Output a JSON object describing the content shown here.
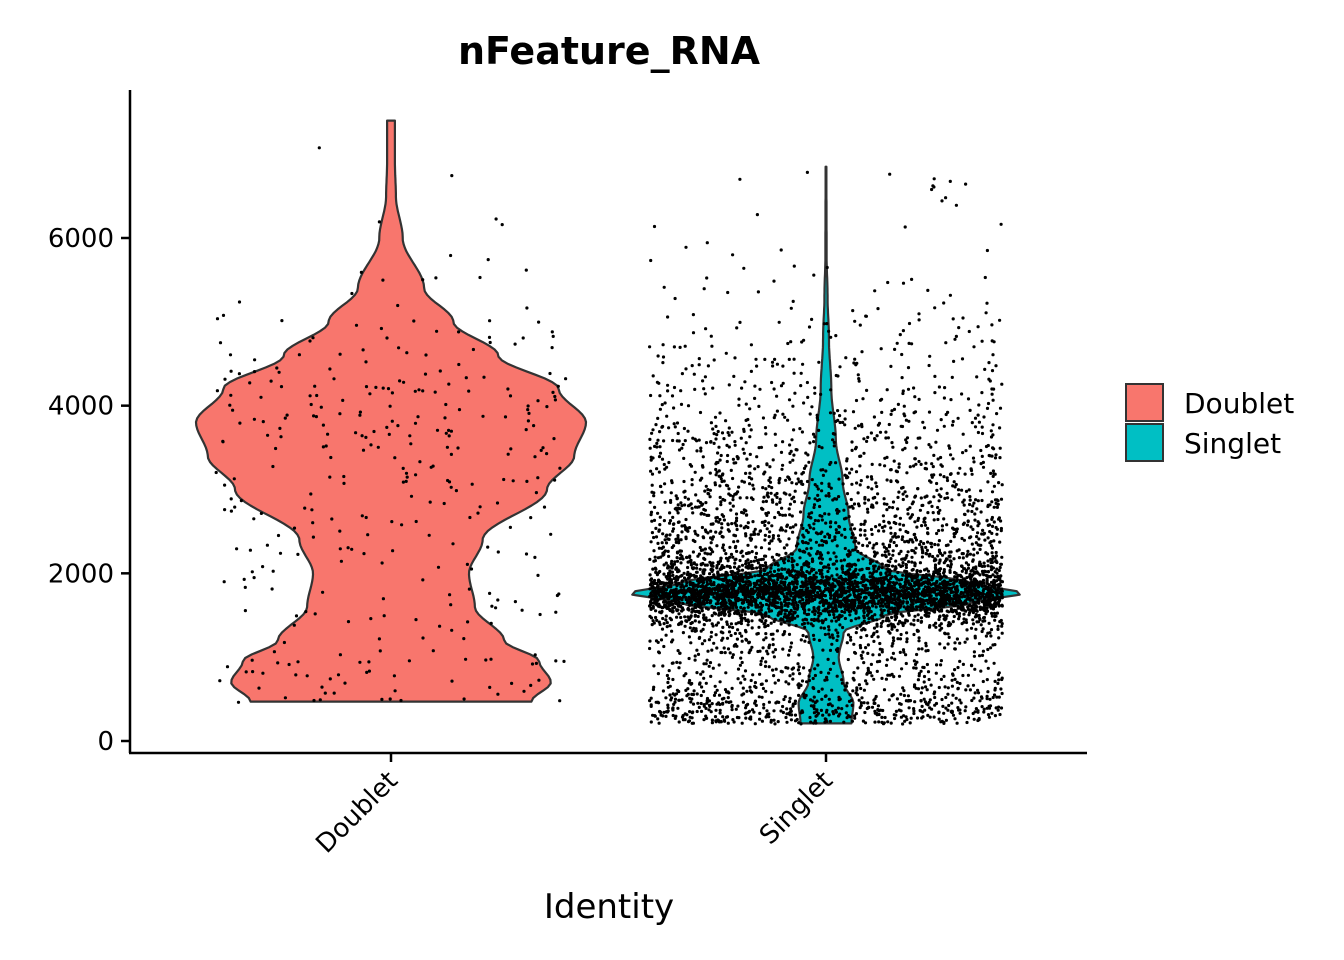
{
  "chart_data": {
    "type": "violin",
    "title": "nFeature_RNA",
    "xlabel": "Identity",
    "ylabel": "",
    "categories": [
      "Doublet",
      "Singlet"
    ],
    "colors": {
      "Doublet": "#F8766D",
      "Singlet": "#00BFC4"
    },
    "ylim": [
      -200,
      7800
    ],
    "yticks": [
      0,
      2000,
      4000,
      6000
    ],
    "ytick_labels": [
      "0",
      "2000",
      "4000",
      "6000"
    ],
    "legend": {
      "position": "right",
      "entries": [
        {
          "label": "Doublet",
          "color": "#F8766D"
        },
        {
          "label": "Singlet",
          "color": "#00BFC4"
        }
      ]
    },
    "grid": false,
    "series": [
      {
        "name": "Doublet",
        "min": 470,
        "max": 7400,
        "approx_points": 340,
        "density_profile": [
          [
            470,
            0.72
          ],
          [
            700,
            0.82
          ],
          [
            950,
            0.76
          ],
          [
            1200,
            0.58
          ],
          [
            1600,
            0.43
          ],
          [
            2000,
            0.4
          ],
          [
            2400,
            0.47
          ],
          [
            3000,
            0.8
          ],
          [
            3400,
            0.94
          ],
          [
            3800,
            1.0
          ],
          [
            4200,
            0.86
          ],
          [
            4600,
            0.55
          ],
          [
            5000,
            0.32
          ],
          [
            5400,
            0.17
          ],
          [
            6000,
            0.06
          ],
          [
            6500,
            0.025
          ],
          [
            6900,
            0.02
          ],
          [
            7400,
            0.02
          ]
        ]
      },
      {
        "name": "Singlet",
        "min": 210,
        "max": 6850,
        "approx_points": 6000,
        "density_profile": [
          [
            210,
            0.13
          ],
          [
            450,
            0.14
          ],
          [
            700,
            0.09
          ],
          [
            1000,
            0.065
          ],
          [
            1300,
            0.09
          ],
          [
            1500,
            0.3
          ],
          [
            1650,
            0.75
          ],
          [
            1760,
            1.0
          ],
          [
            1900,
            0.72
          ],
          [
            2050,
            0.3
          ],
          [
            2300,
            0.15
          ],
          [
            2700,
            0.115
          ],
          [
            3100,
            0.085
          ],
          [
            3600,
            0.05
          ],
          [
            4200,
            0.027
          ],
          [
            4800,
            0.015
          ],
          [
            5300,
            0.008
          ],
          [
            5800,
            0.003
          ],
          [
            6850,
            0.002
          ]
        ]
      }
    ]
  }
}
